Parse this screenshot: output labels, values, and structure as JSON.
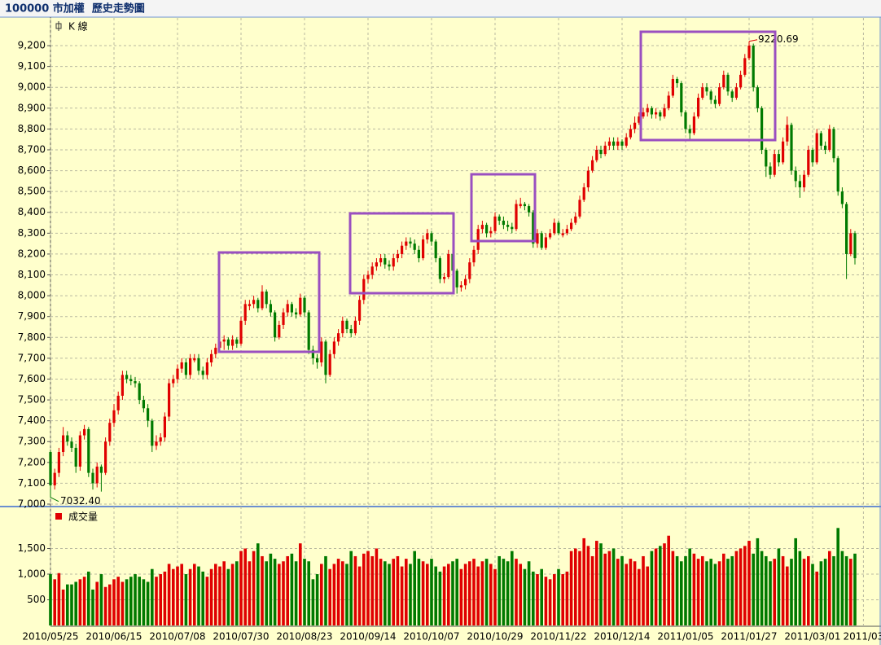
{
  "title": "100000 市加權  歷史走勢圖",
  "chart_data": [
    {
      "type": "candlestick",
      "name": "K 線",
      "up_color": "#e00000",
      "down_color": "#007a00",
      "grid": true,
      "ylim": [
        7000,
        9333
      ],
      "yticks": [
        {
          "value": 7000,
          "label": "7,000"
        },
        {
          "value": 7100,
          "label": "7,100"
        },
        {
          "value": 7200,
          "label": "7,200"
        },
        {
          "value": 7300,
          "label": "7,300"
        },
        {
          "value": 7400,
          "label": "7,400"
        },
        {
          "value": 7500,
          "label": "7,500"
        },
        {
          "value": 7600,
          "label": "7,600"
        },
        {
          "value": 7700,
          "label": "7,700"
        },
        {
          "value": 7800,
          "label": "7,800"
        },
        {
          "value": 7900,
          "label": "7,900"
        },
        {
          "value": 8000,
          "label": "8,000"
        },
        {
          "value": 8100,
          "label": "8,100"
        },
        {
          "value": 8200,
          "label": "8,200"
        },
        {
          "value": 8300,
          "label": "8,300"
        },
        {
          "value": 8400,
          "label": "8,400"
        },
        {
          "value": 8500,
          "label": "8,500"
        },
        {
          "value": 8600,
          "label": "8,600"
        },
        {
          "value": 8700,
          "label": "8,700"
        },
        {
          "value": 8800,
          "label": "8,800"
        },
        {
          "value": 8900,
          "label": "8,900"
        },
        {
          "value": 9000,
          "label": "9,000"
        },
        {
          "value": 9100,
          "label": "9,100"
        },
        {
          "value": 9200,
          "label": "9,200"
        }
      ],
      "max_label": {
        "value": 9220.69,
        "label": "9220.69"
      },
      "min_label": {
        "value": 7032.4,
        "label": "7032.40"
      },
      "categories": [
        "2010/05/25",
        null,
        null,
        null,
        null,
        null,
        null,
        null,
        null,
        null,
        null,
        null,
        null,
        null,
        null,
        "2010/06/15",
        null,
        null,
        null,
        null,
        null,
        null,
        null,
        null,
        null,
        null,
        null,
        null,
        null,
        null,
        "2010/07/08",
        null,
        null,
        null,
        null,
        null,
        null,
        null,
        null,
        null,
        null,
        null,
        null,
        null,
        null,
        "2010/07/30",
        null,
        null,
        null,
        null,
        null,
        null,
        null,
        null,
        null,
        null,
        null,
        null,
        null,
        null,
        "2010/08/23",
        null,
        null,
        null,
        null,
        null,
        null,
        null,
        null,
        null,
        null,
        null,
        null,
        null,
        null,
        "2010/09/14",
        null,
        null,
        null,
        null,
        null,
        null,
        null,
        null,
        null,
        null,
        null,
        null,
        null,
        null,
        "2010/10/07",
        null,
        null,
        null,
        null,
        null,
        null,
        null,
        null,
        null,
        null,
        null,
        null,
        null,
        null,
        "2010/10/29",
        null,
        null,
        null,
        null,
        null,
        null,
        null,
        null,
        null,
        null,
        null,
        null,
        null,
        null,
        "2010/11/22",
        null,
        null,
        null,
        null,
        null,
        null,
        null,
        null,
        null,
        null,
        null,
        null,
        null,
        null,
        "2010/12/14",
        null,
        null,
        null,
        null,
        null,
        null,
        null,
        null,
        null,
        null,
        null,
        null,
        null,
        null,
        "2011/01/05",
        null,
        null,
        null,
        null,
        null,
        null,
        null,
        null,
        null,
        null,
        null,
        null,
        null,
        null,
        "2011/01/27",
        null,
        null,
        null,
        null,
        null,
        null,
        null,
        null,
        null,
        null,
        null,
        null,
        null,
        null,
        "2011/03/01",
        null,
        null,
        null,
        null,
        null,
        null,
        null,
        null,
        null,
        null,
        null,
        "2011/03"
      ],
      "open": [
        7250,
        7090,
        7150,
        7250,
        7330,
        7300,
        7270,
        7180,
        7330,
        7360,
        7150,
        7100,
        7180,
        7150,
        7300,
        7390,
        7450,
        7520,
        7620,
        7600,
        7590,
        7580,
        7500,
        7460,
        7400,
        7280,
        7300,
        7320,
        7420,
        7580,
        7600,
        7650,
        7680,
        7620,
        7690,
        7700,
        7640,
        7620,
        7680,
        7720,
        7750,
        7780,
        7790,
        7760,
        7790,
        7770,
        7880,
        7950,
        7960,
        7980,
        7940,
        8020,
        7960,
        7920,
        7800,
        7860,
        7920,
        7960,
        7920,
        7910,
        7990,
        7920,
        7740,
        7700,
        7680,
        7780,
        7620,
        7720,
        7780,
        7820,
        7880,
        7840,
        7820,
        7880,
        7980,
        8080,
        8100,
        8140,
        8160,
        8180,
        8150,
        8140,
        8180,
        8200,
        8240,
        8260,
        8250,
        8220,
        8180,
        8270,
        8300,
        8260,
        8180,
        8080,
        8090,
        8200,
        8120,
        8040,
        8050,
        8080,
        8160,
        8220,
        8320,
        8340,
        8300,
        8310,
        8380,
        8360,
        8340,
        8330,
        8320,
        8430,
        8440,
        8430,
        8400,
        8250,
        8300,
        8230,
        8280,
        8300,
        8350,
        8290,
        8300,
        8320,
        8350,
        8380,
        8460,
        8520,
        8600,
        8650,
        8700,
        8680,
        8720,
        8740,
        8720,
        8740,
        8720,
        8760,
        8800,
        8830,
        8860,
        8880,
        8900,
        8870,
        8880,
        8860,
        8900,
        8960,
        9040,
        9020,
        8880,
        8800,
        8780,
        8860,
        8950,
        9000,
        8980,
        8940,
        8920,
        9000,
        9060,
        8980,
        8950,
        9000,
        9060,
        9140,
        9200,
        9000,
        8900,
        8700,
        8620,
        8580,
        8680,
        8640,
        8740,
        8820,
        8600,
        8550,
        8520,
        8580,
        8700,
        8640,
        8780,
        8720,
        8700,
        8800,
        8660,
        8500,
        8440,
        8200,
        8300,
        null,
        null
      ],
      "high": [
        7260,
        7170,
        7270,
        7370,
        7350,
        7320,
        7290,
        7350,
        7380,
        7370,
        7170,
        7200,
        7190,
        7320,
        7410,
        7480,
        7540,
        7640,
        7640,
        7620,
        7610,
        7590,
        7520,
        7480,
        7410,
        7330,
        7340,
        7440,
        7600,
        7620,
        7670,
        7700,
        7700,
        7720,
        7720,
        7720,
        7660,
        7700,
        7740,
        7770,
        7800,
        7810,
        7800,
        7810,
        7800,
        7900,
        7980,
        7980,
        8000,
        7990,
        8050,
        8030,
        7980,
        7930,
        7880,
        7940,
        7980,
        7970,
        7940,
        8010,
        8000,
        7930,
        7760,
        7720,
        7800,
        7790,
        7740,
        7800,
        7840,
        7900,
        7890,
        7860,
        7900,
        8000,
        8100,
        8120,
        8160,
        8180,
        8200,
        8200,
        8170,
        8200,
        8220,
        8260,
        8280,
        8280,
        8270,
        8240,
        8290,
        8320,
        8310,
        8270,
        8190,
        8110,
        8220,
        8210,
        8130,
        8070,
        8100,
        8180,
        8240,
        8340,
        8360,
        8350,
        8330,
        8400,
        8390,
        8380,
        8360,
        8350,
        8460,
        8470,
        8450,
        8440,
        8410,
        8320,
        8310,
        8300,
        8320,
        8370,
        8360,
        8320,
        8340,
        8370,
        8400,
        8480,
        8540,
        8620,
        8670,
        8720,
        8720,
        8740,
        8760,
        8760,
        8760,
        8750,
        8780,
        8820,
        8860,
        8880,
        8900,
        8920,
        8910,
        8900,
        8890,
        8920,
        8980,
        9060,
        9050,
        9030,
        8890,
        8820,
        8880,
        8970,
        9020,
        9020,
        8990,
        8960,
        9020,
        9080,
        9070,
        8990,
        9020,
        9080,
        9160,
        9220.69,
        9210,
        9010,
        8910,
        8710,
        8640,
        8700,
        8700,
        8760,
        8860,
        8830,
        8620,
        8580,
        8600,
        8720,
        8710,
        8800,
        8790,
        8740,
        8820,
        8810,
        8670,
        8520,
        8450,
        8320,
        8310,
        null,
        null
      ],
      "low": [
        7032.4,
        7070,
        7130,
        7230,
        7280,
        7250,
        7150,
        7160,
        7310,
        7130,
        7070,
        7080,
        7060,
        7140,
        7280,
        7370,
        7430,
        7500,
        7580,
        7570,
        7560,
        7480,
        7440,
        7370,
        7250,
        7260,
        7280,
        7300,
        7400,
        7560,
        7580,
        7630,
        7600,
        7600,
        7680,
        7620,
        7600,
        7600,
        7660,
        7700,
        7730,
        7740,
        7740,
        7740,
        7750,
        7760,
        7860,
        7930,
        7940,
        7920,
        7930,
        7940,
        7900,
        7780,
        7790,
        7840,
        7900,
        7900,
        7890,
        7900,
        7900,
        7720,
        7670,
        7650,
        7660,
        7580,
        7610,
        7700,
        7760,
        7800,
        7820,
        7800,
        7810,
        7860,
        7960,
        8060,
        8080,
        8120,
        8140,
        8130,
        8120,
        8120,
        8160,
        8180,
        8220,
        8230,
        8200,
        8160,
        8170,
        8250,
        8240,
        8160,
        8060,
        8060,
        8080,
        8100,
        8010,
        8020,
        8030,
        8060,
        8140,
        8200,
        8300,
        8280,
        8280,
        8300,
        8340,
        8320,
        8310,
        8300,
        8310,
        8420,
        8410,
        8380,
        8230,
        8230,
        8220,
        8220,
        8270,
        8290,
        8290,
        8280,
        8290,
        8310,
        8340,
        8370,
        8450,
        8500,
        8590,
        8640,
        8660,
        8670,
        8700,
        8700,
        8700,
        8700,
        8710,
        8750,
        8780,
        8820,
        8850,
        8860,
        8850,
        8850,
        8840,
        8850,
        8890,
        8950,
        9000,
        8860,
        8780,
        8750,
        8770,
        8850,
        8940,
        8960,
        8920,
        8900,
        8910,
        8990,
        8960,
        8930,
        8940,
        8990,
        9050,
        9130,
        8980,
        8880,
        8680,
        8570,
        8560,
        8570,
        8620,
        8630,
        8720,
        8580,
        8520,
        8470,
        8500,
        8570,
        8620,
        8630,
        8700,
        8680,
        8690,
        8640,
        8480,
        8420,
        8080,
        8190,
        8150,
        null,
        null
      ],
      "close": [
        7090,
        7150,
        7250,
        7330,
        7300,
        7270,
        7180,
        7330,
        7360,
        7150,
        7100,
        7180,
        7150,
        7300,
        7390,
        7450,
        7520,
        7620,
        7600,
        7590,
        7580,
        7500,
        7460,
        7400,
        7280,
        7300,
        7320,
        7420,
        7580,
        7600,
        7650,
        7680,
        7620,
        7700,
        7700,
        7640,
        7620,
        7680,
        7720,
        7750,
        7780,
        7790,
        7760,
        7790,
        7770,
        7880,
        7960,
        7960,
        7980,
        7940,
        8020,
        7960,
        7920,
        7800,
        7860,
        7920,
        7960,
        7920,
        7910,
        7990,
        7920,
        7740,
        7700,
        7680,
        7780,
        7620,
        7720,
        7780,
        7820,
        7880,
        7840,
        7820,
        7880,
        7980,
        8080,
        8100,
        8140,
        8160,
        8180,
        8150,
        8140,
        8180,
        8200,
        8240,
        8260,
        8250,
        8220,
        8180,
        8270,
        8300,
        8260,
        8180,
        8080,
        8090,
        8200,
        8120,
        8040,
        8050,
        8080,
        8160,
        8220,
        8320,
        8340,
        8300,
        8310,
        8380,
        8360,
        8340,
        8330,
        8320,
        8440,
        8440,
        8430,
        8400,
        8250,
        8300,
        8230,
        8280,
        8300,
        8350,
        8300,
        8300,
        8320,
        8350,
        8380,
        8460,
        8520,
        8600,
        8650,
        8700,
        8680,
        8720,
        8740,
        8720,
        8740,
        8720,
        8760,
        8800,
        8830,
        8860,
        8880,
        8900,
        8870,
        8880,
        8860,
        8900,
        8960,
        9040,
        9020,
        8880,
        8800,
        8780,
        8860,
        8950,
        9000,
        8980,
        8940,
        8920,
        9000,
        9060,
        8980,
        8950,
        9000,
        9060,
        9140,
        9200,
        9000,
        8900,
        8700,
        8620,
        8580,
        8680,
        8640,
        8740,
        8820,
        8600,
        8550,
        8520,
        8580,
        8700,
        8640,
        8780,
        8720,
        8700,
        8800,
        8660,
        8500,
        8440,
        8200,
        8300,
        8180,
        null,
        null
      ]
    },
    {
      "type": "bar",
      "name": "成交量",
      "ylim": [
        0,
        2270
      ],
      "grid": true,
      "yticks": [
        500,
        {
          "value": 1000,
          "label": "1,000"
        },
        {
          "value": 1500,
          "label": "1,500"
        }
      ],
      "values": [
        1000,
        900,
        1020,
        700,
        800,
        800,
        850,
        900,
        950,
        1050,
        700,
        850,
        1000,
        750,
        800,
        900,
        950,
        850,
        900,
        950,
        1000,
        950,
        900,
        850,
        1100,
        950,
        1000,
        1050,
        1200,
        1100,
        1150,
        1200,
        1000,
        1100,
        1200,
        1150,
        1050,
        950,
        1100,
        1200,
        1150,
        1250,
        1100,
        1200,
        1250,
        1450,
        1500,
        1250,
        1450,
        1600,
        1350,
        1250,
        1400,
        1300,
        1200,
        1250,
        1350,
        1400,
        1250,
        1600,
        1300,
        1250,
        900,
        1000,
        1200,
        1350,
        1100,
        1200,
        1300,
        1250,
        1200,
        1450,
        1350,
        1150,
        1400,
        1450,
        1350,
        1500,
        1300,
        1250,
        1200,
        1300,
        1350,
        1150,
        1300,
        1200,
        1450,
        1300,
        1250,
        1200,
        1300,
        1150,
        1050,
        1150,
        1200,
        1250,
        1300,
        1100,
        1200,
        1250,
        1300,
        1150,
        1250,
        1300,
        1200,
        1100,
        1350,
        1300,
        1250,
        1450,
        1300,
        1200,
        1100,
        1250,
        1050,
        1000,
        1100,
        950,
        900,
        1000,
        1100,
        1000,
        1050,
        1450,
        1500,
        1450,
        1700,
        1550,
        1350,
        1650,
        1600,
        1400,
        1450,
        1500,
        1300,
        1350,
        1200,
        1300,
        1250,
        1100,
        1350,
        1150,
        1450,
        1500,
        1550,
        1600,
        1750,
        1450,
        1350,
        1250,
        1350,
        1500,
        1400,
        1300,
        1350,
        1250,
        1300,
        1200,
        1250,
        1400,
        1300,
        1350,
        1450,
        1500,
        1550,
        1650,
        1400,
        1700,
        1450,
        1350,
        1250,
        1300,
        1500,
        1350,
        1150,
        1300,
        1700,
        1450,
        1300,
        1350,
        1200,
        1050,
        1250,
        1300,
        1450,
        1350,
        1900,
        1450,
        1350,
        1300,
        1400,
        null,
        null
      ]
    }
  ]
}
